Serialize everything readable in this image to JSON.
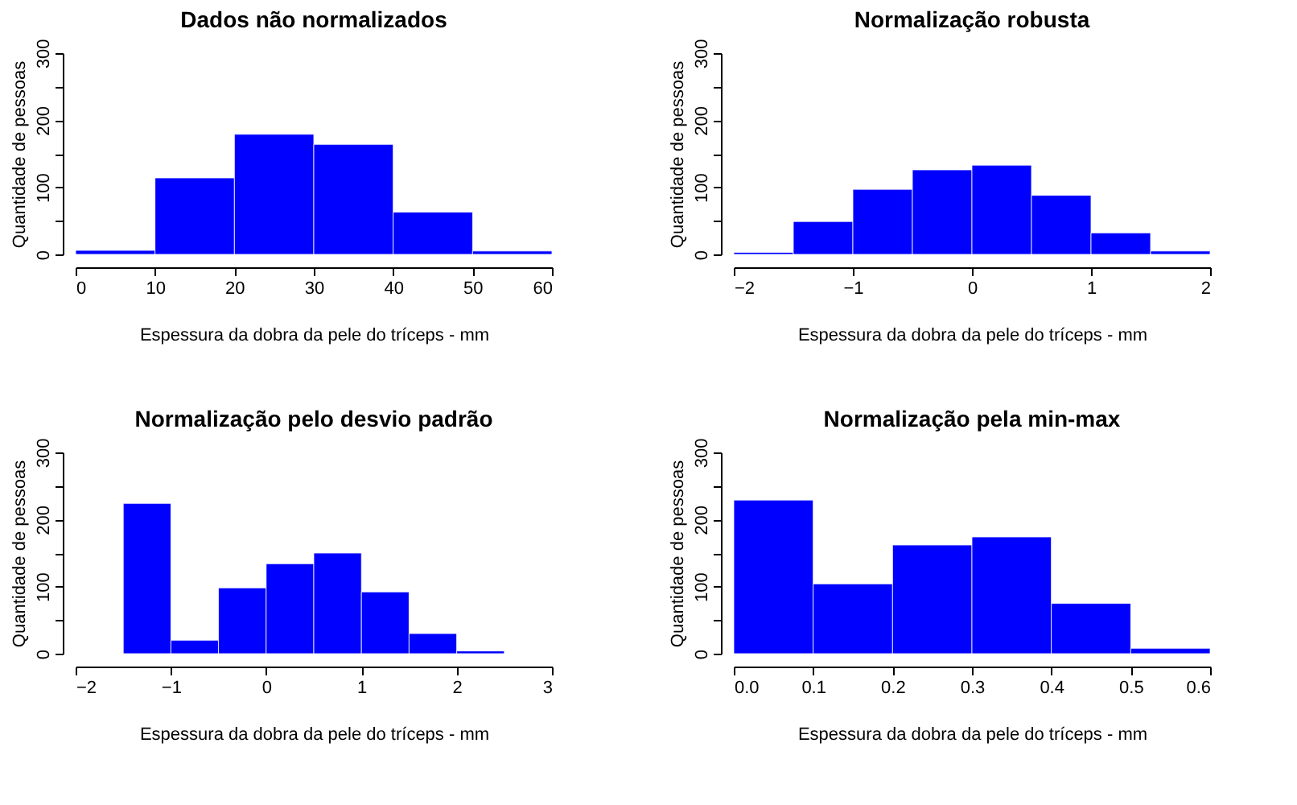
{
  "chart_data": [
    {
      "type": "histogram",
      "title": "Dados não normalizados",
      "xlabel": "Espessura da dobra da pele do tríceps - mm",
      "ylabel": "Quantidade de pessoas",
      "bins": [
        0,
        10,
        20,
        30,
        40,
        50,
        60
      ],
      "values": [
        6,
        114,
        179,
        164,
        63,
        5
      ],
      "color": "#0000ff",
      "xlim": [
        0,
        60
      ],
      "xticks": [
        0,
        10,
        20,
        30,
        40,
        50,
        60
      ],
      "ylim": [
        0,
        300
      ],
      "yticks": [
        0,
        {
          "value": 50,
          "label": null
        },
        100,
        {
          "value": 150,
          "label": null
        },
        200,
        {
          "value": 250,
          "label": null
        },
        300
      ],
      "grid": false
    },
    {
      "type": "histogram",
      "title": "Normalização robusta",
      "xlabel": "Espessura da dobra da pele do tríceps - mm",
      "ylabel": "Quantidade de pessoas",
      "bins": [
        -2,
        -1.5,
        -1,
        -0.5,
        0,
        0.5,
        1,
        1.5,
        2
      ],
      "values": [
        3,
        49,
        97,
        126,
        133,
        88,
        32,
        5
      ],
      "color": "#0000ff",
      "xlim": [
        -2,
        2
      ],
      "xticks": [
        -2,
        -1,
        0,
        1,
        2
      ],
      "ylim": [
        0,
        300
      ],
      "yticks": [
        0,
        {
          "value": 50,
          "label": null
        },
        100,
        {
          "value": 150,
          "label": null
        },
        200,
        {
          "value": 250,
          "label": null
        },
        300
      ],
      "grid": false
    },
    {
      "type": "histogram",
      "title": "Normalização pelo desvio padrão",
      "xlabel": "Espessura da dobra da pele do tríceps - mm",
      "ylabel": "Quantidade de pessoas",
      "bins": [
        -1.5,
        -1,
        -0.5,
        0,
        0.5,
        1,
        1.5,
        2,
        2.5
      ],
      "values": [
        224,
        20,
        98,
        134,
        150,
        92,
        30,
        4
      ],
      "color": "#0000ff",
      "xlim": [
        -2,
        3
      ],
      "xticks": [
        -2,
        -1,
        0,
        1,
        2,
        3
      ],
      "ylim": [
        0,
        300
      ],
      "yticks": [
        0,
        {
          "value": 50,
          "label": null
        },
        100,
        {
          "value": 150,
          "label": null
        },
        200,
        {
          "value": 250,
          "label": null
        },
        300
      ],
      "grid": false
    },
    {
      "type": "histogram",
      "title": "Normalização pela min-max",
      "xlabel": "Espessura da dobra da pele do tríceps - mm",
      "ylabel": "Quantidade de pessoas",
      "bins": [
        0,
        0.1,
        0.2,
        0.3,
        0.4,
        0.5,
        0.6
      ],
      "values": [
        229,
        104,
        162,
        174,
        75,
        8
      ],
      "color": "#0000ff",
      "xlim": [
        0,
        0.6
      ],
      "xticks": [
        {
          "value": 0,
          "label": "0.0"
        },
        0.1,
        0.2,
        0.3,
        0.4,
        0.5,
        0.6
      ],
      "ylim": [
        0,
        300
      ],
      "yticks": [
        0,
        {
          "value": 50,
          "label": null
        },
        100,
        {
          "value": 150,
          "label": null
        },
        200,
        {
          "value": 250,
          "label": null
        },
        300
      ],
      "grid": false
    }
  ]
}
